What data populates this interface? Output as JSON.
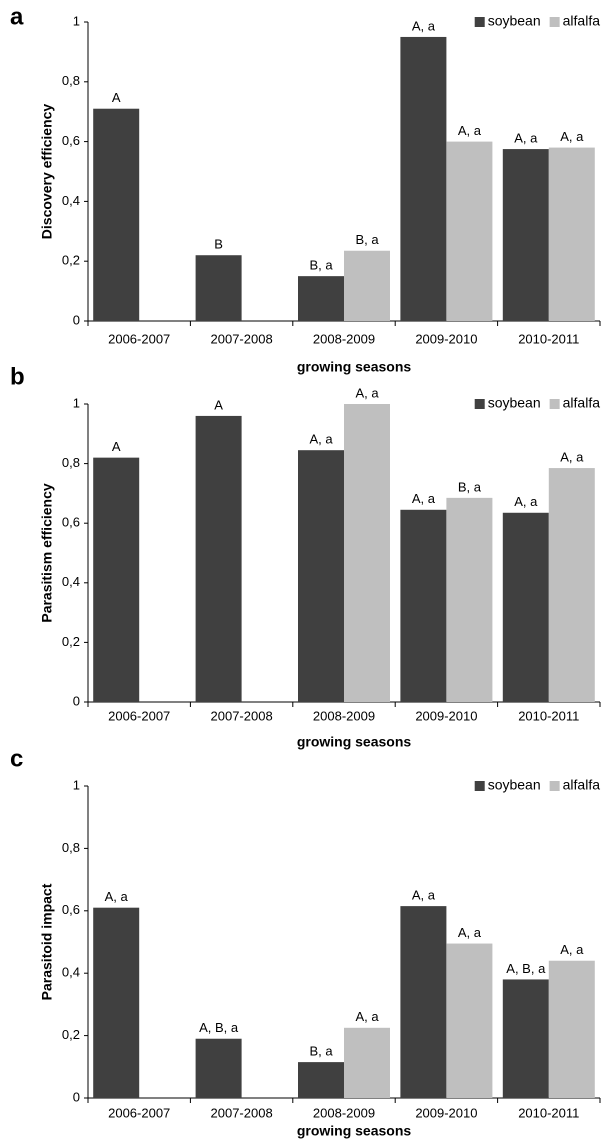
{
  "chart_data": [
    {
      "type": "bar",
      "panel": "a",
      "ylabel": "Discovery efficiency",
      "xlabel": "growing seasons",
      "categories": [
        "2006-2007",
        "2007-2008",
        "2008-2009",
        "2009-2010",
        "2010-2011"
      ],
      "series": [
        {
          "name": "soybean",
          "color": "#404040",
          "values": [
            0.71,
            0.22,
            0.15,
            0.95,
            0.575
          ],
          "labels": [
            "A",
            "B",
            "B, a",
            "A, a",
            "A, a"
          ]
        },
        {
          "name": "alfalfa",
          "color": "#bfbfbf",
          "values": [
            null,
            null,
            0.235,
            0.6,
            0.58
          ],
          "labels": [
            null,
            null,
            "B, a",
            "A, a",
            "A, a"
          ]
        }
      ],
      "ylim": [
        0,
        1
      ],
      "yticks": [
        0,
        {
          "value": 0.2,
          "label": "0,2"
        },
        {
          "value": 0.4,
          "label": "0,4"
        },
        {
          "value": 0.6,
          "label": "0,6"
        },
        {
          "value": 0.8,
          "label": "0,8"
        },
        1
      ],
      "legend": "top-right"
    },
    {
      "type": "bar",
      "panel": "b",
      "ylabel": "Parasitism efficiency",
      "xlabel": "growing seasons",
      "categories": [
        "2006-2007",
        "2007-2008",
        "2008-2009",
        "2009-2010",
        "2010-2011"
      ],
      "series": [
        {
          "name": "soybean",
          "color": "#404040",
          "values": [
            0.82,
            0.96,
            0.845,
            0.645,
            0.635
          ],
          "labels": [
            "A",
            "A",
            "A, a",
            "A, a",
            "A, a"
          ]
        },
        {
          "name": "alfalfa",
          "color": "#bfbfbf",
          "values": [
            null,
            null,
            1.0,
            0.685,
            0.785
          ],
          "labels": [
            null,
            null,
            "A, a",
            "B, a",
            "A, a"
          ]
        }
      ],
      "ylim": [
        0,
        1
      ],
      "yticks": [
        0,
        {
          "value": 0.2,
          "label": "0,2"
        },
        {
          "value": 0.4,
          "label": "0,4"
        },
        {
          "value": 0.6,
          "label": "0,6"
        },
        {
          "value": 0.8,
          "label": "0,8"
        },
        1
      ],
      "legend": "top-right"
    },
    {
      "type": "bar",
      "panel": "c",
      "ylabel": "Parasitoid impact",
      "xlabel": "growing seasons",
      "categories": [
        "2006-2007",
        "2007-2008",
        "2008-2009",
        "2009-2010",
        "2010-2011"
      ],
      "series": [
        {
          "name": "soybean",
          "color": "#404040",
          "values": [
            0.61,
            0.19,
            0.115,
            0.615,
            0.38
          ],
          "labels": [
            "A, a",
            "A, B, a",
            "B, a",
            "A, a",
            "A, B, a"
          ]
        },
        {
          "name": "alfalfa",
          "color": "#bfbfbf",
          "values": [
            null,
            null,
            0.225,
            0.495,
            0.44
          ],
          "labels": [
            null,
            null,
            "A, a",
            "A, a",
            "A, a"
          ]
        }
      ],
      "ylim": [
        0,
        1
      ],
      "yticks": [
        0,
        {
          "value": 0.2,
          "label": "0,2"
        },
        {
          "value": 0.4,
          "label": "0,4"
        },
        {
          "value": 0.6,
          "label": "0,6"
        },
        {
          "value": 0.8,
          "label": "0,8"
        },
        1
      ],
      "legend": "top-right"
    }
  ]
}
